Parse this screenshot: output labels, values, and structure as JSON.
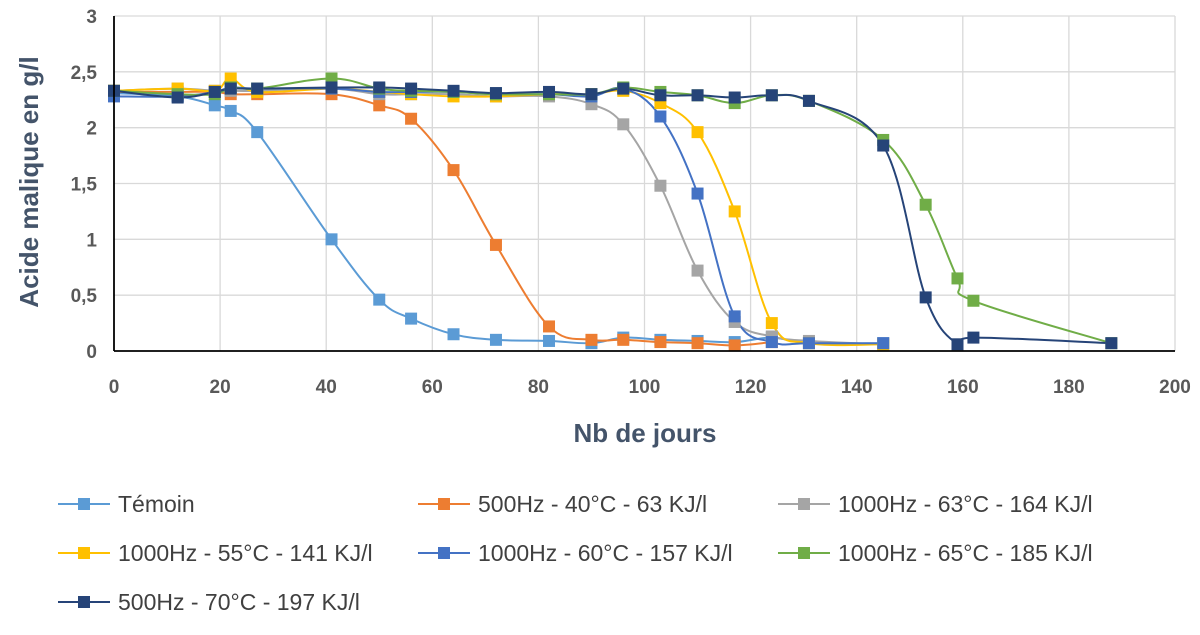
{
  "chart_data": {
    "type": "line",
    "title": "",
    "xlabel": "Nb de jours",
    "ylabel": "Acide malique en g/l",
    "xlim": [
      0,
      200
    ],
    "ylim": [
      0,
      3
    ],
    "xticks": [
      "0",
      "20",
      "40",
      "60",
      "80",
      "100",
      "120",
      "140",
      "160",
      "180",
      "200"
    ],
    "yticks": [
      "0",
      "0,5",
      "1",
      "1,5",
      "2",
      "2,5",
      "3"
    ],
    "grid": true,
    "legend_position": "bottom",
    "series": [
      {
        "name": "Témoin",
        "color": "#5b9bd5",
        "x": [
          0,
          12,
          19,
          22,
          27,
          41,
          50,
          56,
          64,
          72,
          82,
          90,
          96,
          103,
          110,
          117,
          124,
          131,
          145
        ],
        "y": [
          2.31,
          2.28,
          2.2,
          2.15,
          1.96,
          1.0,
          0.46,
          0.29,
          0.15,
          0.1,
          0.09,
          0.07,
          0.12,
          0.1,
          0.09,
          0.08,
          0.12,
          0.07,
          0.07
        ]
      },
      {
        "name": "500Hz - 40°C - 63 KJ/l",
        "color": "#ed7d31",
        "x": [
          0,
          12,
          19,
          22,
          27,
          41,
          50,
          56,
          64,
          72,
          82,
          90,
          96,
          103,
          110,
          117,
          124
        ],
        "y": [
          2.32,
          2.32,
          2.32,
          2.3,
          2.3,
          2.3,
          2.2,
          2.08,
          1.62,
          0.95,
          0.22,
          0.1,
          0.1,
          0.08,
          0.07,
          0.05,
          0.08
        ]
      },
      {
        "name": "1000Hz - 63°C - 164 KJ/l",
        "color": "#a5a5a5",
        "x": [
          0,
          12,
          19,
          22,
          27,
          41,
          50,
          56,
          64,
          72,
          82,
          90,
          96,
          103,
          110,
          117,
          124,
          131,
          145
        ],
        "y": [
          2.33,
          2.35,
          2.33,
          2.33,
          2.33,
          2.35,
          2.3,
          2.3,
          2.3,
          2.28,
          2.28,
          2.21,
          2.03,
          1.48,
          0.72,
          0.26,
          0.13,
          0.09,
          0.06
        ]
      },
      {
        "name": "1000Hz - 55°C - 141 KJ/l",
        "color": "#ffc000",
        "x": [
          0,
          12,
          19,
          22,
          27,
          41,
          50,
          56,
          64,
          72,
          82,
          90,
          96,
          103,
          110,
          117,
          124,
          131,
          145
        ],
        "y": [
          2.33,
          2.35,
          2.33,
          2.44,
          2.32,
          2.35,
          2.32,
          2.3,
          2.28,
          2.28,
          2.3,
          2.3,
          2.33,
          2.22,
          1.96,
          1.25,
          0.25,
          0.07,
          0.06
        ]
      },
      {
        "name": "1000Hz - 60°C - 157 KJ/l",
        "color": "#4472c4",
        "x": [
          0,
          12,
          19,
          22,
          27,
          41,
          50,
          56,
          64,
          72,
          82,
          90,
          96,
          103,
          110,
          117,
          124,
          131,
          145
        ],
        "y": [
          2.28,
          2.28,
          2.32,
          2.36,
          2.35,
          2.35,
          2.32,
          2.32,
          2.32,
          2.3,
          2.3,
          2.28,
          2.35,
          2.1,
          1.41,
          0.31,
          0.08,
          0.07,
          0.07
        ]
      },
      {
        "name": "1000Hz - 65°C - 185 KJ/l",
        "color": "#70ad47",
        "x": [
          0,
          12,
          19,
          22,
          27,
          41,
          50,
          56,
          64,
          72,
          82,
          90,
          96,
          103,
          110,
          117,
          124,
          131,
          145,
          153,
          159,
          162,
          188
        ],
        "y": [
          2.33,
          2.3,
          2.3,
          2.36,
          2.35,
          2.44,
          2.35,
          2.33,
          2.32,
          2.3,
          2.3,
          2.3,
          2.36,
          2.32,
          2.29,
          2.22,
          2.29,
          2.24,
          1.89,
          1.31,
          0.65,
          0.45,
          0.07
        ]
      },
      {
        "name": "500Hz - 70°C - 197 KJ/l",
        "color": "#264478",
        "x": [
          0,
          12,
          19,
          22,
          27,
          41,
          50,
          56,
          64,
          72,
          82,
          90,
          96,
          103,
          110,
          117,
          124,
          131,
          145,
          153,
          159,
          162,
          188
        ],
        "y": [
          2.33,
          2.27,
          2.32,
          2.35,
          2.35,
          2.36,
          2.36,
          2.35,
          2.33,
          2.31,
          2.32,
          2.3,
          2.35,
          2.29,
          2.29,
          2.27,
          2.29,
          2.24,
          1.84,
          0.48,
          0.06,
          0.12,
          0.07
        ]
      }
    ]
  }
}
